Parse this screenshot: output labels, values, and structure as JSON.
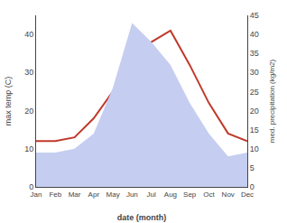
{
  "chart_data": {
    "type": "line",
    "categories": [
      "Jan",
      "Feb",
      "Mar",
      "Apr",
      "May",
      "Jun",
      "Jul",
      "Aug",
      "Sep",
      "Oct",
      "Nov",
      "Dec"
    ],
    "series": [
      {
        "type": "area",
        "axis": "y2",
        "color": "#c5cdf0",
        "values": [
          9,
          9,
          10,
          14,
          26,
          43,
          38,
          32,
          22,
          14,
          8,
          9
        ]
      },
      {
        "type": "line",
        "color": "#c0392b",
        "values": [
          12,
          12,
          13,
          18,
          25,
          32,
          38,
          41,
          32,
          22,
          14,
          12
        ]
      }
    ],
    "xlabel": "date (month)",
    "ylabel": "max temp (C)",
    "y2label": "med. precipitation (kg/m2)",
    "ylim": [
      0,
      45
    ],
    "yticks": [
      0,
      10,
      20,
      30,
      40
    ],
    "y2lim": [
      0,
      45
    ],
    "y2ticks": [
      0,
      5,
      10,
      15,
      20,
      25,
      30,
      35,
      40,
      45
    ],
    "grid": false
  }
}
